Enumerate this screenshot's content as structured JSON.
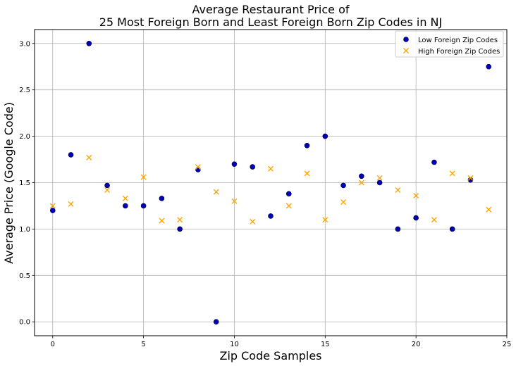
{
  "chart_data": {
    "type": "scatter",
    "title": [
      "Average Restaurant Price of",
      "25 Most Foreign Born and Least Foreign Born Zip Codes in NJ"
    ],
    "xlabel": "Zip Code Samples",
    "ylabel": "Average Price (Google Code)",
    "xlim": [
      -1,
      25
    ],
    "ylim": [
      -0.15,
      3.15
    ],
    "xticks": [
      0,
      5,
      10,
      15,
      20,
      25
    ],
    "yticks": [
      0.0,
      0.5,
      1.0,
      1.5,
      2.0,
      2.5,
      3.0
    ],
    "ytick_labels": [
      "0.0",
      "0.5",
      "1.0",
      "1.5",
      "2.0",
      "2.5",
      "3.0"
    ],
    "grid": true,
    "legend_position": "top-right",
    "series": [
      {
        "name": "Low Foreign Zip Codes",
        "marker": "circle",
        "color": "#0000bb",
        "x": [
          0,
          1,
          2,
          3,
          4,
          5,
          6,
          7,
          8,
          9,
          10,
          11,
          12,
          13,
          14,
          15,
          16,
          17,
          18,
          19,
          20,
          21,
          22,
          23,
          24
        ],
        "y": [
          1.2,
          1.8,
          3.0,
          1.47,
          1.25,
          1.25,
          1.33,
          1.0,
          1.64,
          0.0,
          1.7,
          1.67,
          1.14,
          1.38,
          1.9,
          2.0,
          1.47,
          1.57,
          1.5,
          1.0,
          1.12,
          1.72,
          1.0,
          1.53,
          2.75
        ]
      },
      {
        "name": "High Foreign Zip Codes",
        "marker": "x",
        "color": "#ffa500",
        "x": [
          0,
          1,
          2,
          3,
          4,
          5,
          6,
          7,
          8,
          9,
          10,
          11,
          12,
          13,
          14,
          15,
          16,
          17,
          18,
          19,
          20,
          21,
          22,
          23,
          24
        ],
        "y": [
          1.25,
          1.27,
          1.77,
          1.42,
          1.33,
          1.56,
          1.09,
          1.1,
          1.67,
          1.4,
          1.3,
          1.08,
          1.65,
          1.25,
          1.6,
          1.1,
          1.29,
          1.5,
          1.55,
          1.42,
          1.36,
          1.1,
          1.6,
          1.55,
          1.21
        ]
      }
    ]
  }
}
